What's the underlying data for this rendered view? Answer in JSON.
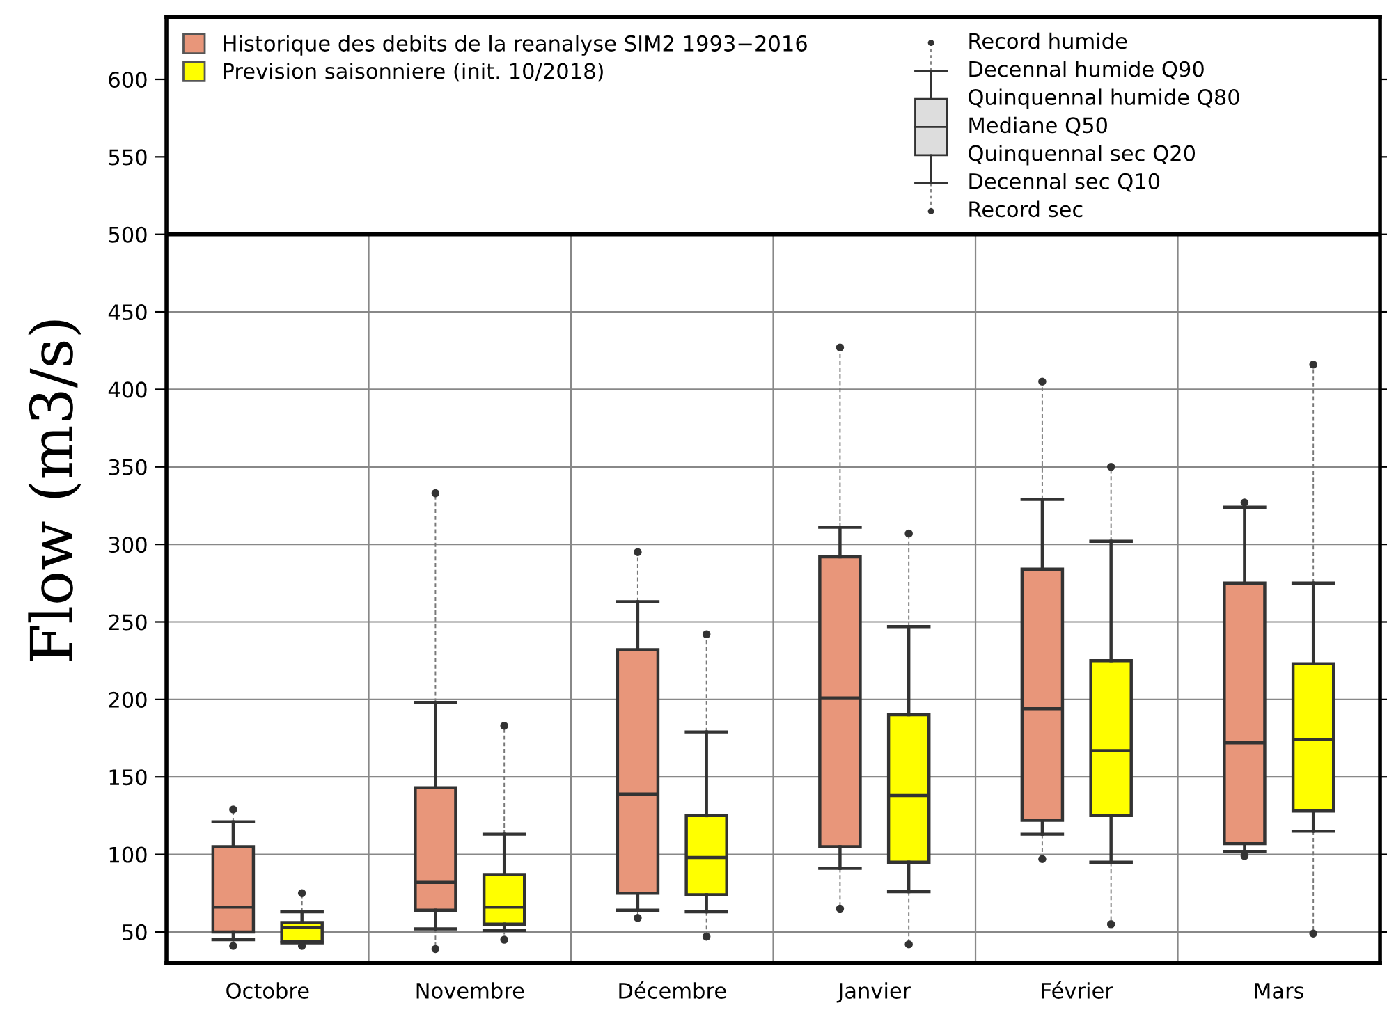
{
  "chart_data": {
    "type": "box",
    "categories": [
      "Octobre",
      "Novembre",
      "Décembre",
      "Janvier",
      "Février",
      "Mars"
    ],
    "ylabel": "Flow (m3/s)",
    "ylim": [
      30,
      640
    ],
    "yticks": [
      50,
      100,
      150,
      200,
      250,
      300,
      350,
      400,
      450,
      500,
      550,
      600
    ],
    "grid": true,
    "legend": "top left",
    "series": [
      {
        "name": "Historique des debits de la reanalyse SIM2 1993−2016",
        "color": "#e8967a",
        "boxes": [
          {
            "low": 45,
            "q1": 50,
            "median": 66,
            "q3": 105,
            "high": 121,
            "outliers": [
              129,
              41
            ]
          },
          {
            "low": 52,
            "q1": 64,
            "median": 82,
            "q3": 143,
            "high": 198,
            "outliers": [
              333,
              39
            ]
          },
          {
            "low": 64,
            "q1": 75,
            "median": 139,
            "q3": 232,
            "high": 263,
            "outliers": [
              295,
              59
            ]
          },
          {
            "low": 91,
            "q1": 105,
            "median": 201,
            "q3": 292,
            "high": 311,
            "outliers": [
              427,
              65
            ]
          },
          {
            "low": 113,
            "q1": 122,
            "median": 194,
            "q3": 284,
            "high": 329,
            "outliers": [
              405,
              97
            ]
          },
          {
            "low": 102,
            "q1": 107,
            "median": 172,
            "q3": 275,
            "high": 324,
            "outliers": [
              327,
              99
            ]
          }
        ]
      },
      {
        "name": "Prevision saisonniere (init. 10/2018)",
        "color": "#ffff00",
        "boxes": [
          {
            "low": 43,
            "q1": 44,
            "median": 53,
            "q3": 56,
            "high": 63,
            "outliers": [
              75,
              41
            ]
          },
          {
            "low": 51,
            "q1": 55,
            "median": 66,
            "q3": 87,
            "high": 113,
            "outliers": [
              183,
              45
            ]
          },
          {
            "low": 63,
            "q1": 74,
            "median": 98,
            "q3": 125,
            "high": 179,
            "outliers": [
              242,
              47
            ]
          },
          {
            "low": 76,
            "q1": 95,
            "median": 138,
            "q3": 190,
            "high": 247,
            "outliers": [
              307,
              42
            ]
          },
          {
            "low": 95,
            "q1": 125,
            "median": 167,
            "q3": 225,
            "high": 302,
            "outliers": [
              350,
              55
            ]
          },
          {
            "low": 115,
            "q1": 128,
            "median": 174,
            "q3": 223,
            "high": 275,
            "outliers": [
              416,
              49
            ]
          }
        ]
      }
    ],
    "annotations": [
      "Record humide",
      "Decennal humide Q90",
      "Quinquennal humide Q80",
      "Mediane Q50",
      "Quinquennal sec Q20",
      "Decennal sec Q10",
      "Record sec"
    ]
  }
}
